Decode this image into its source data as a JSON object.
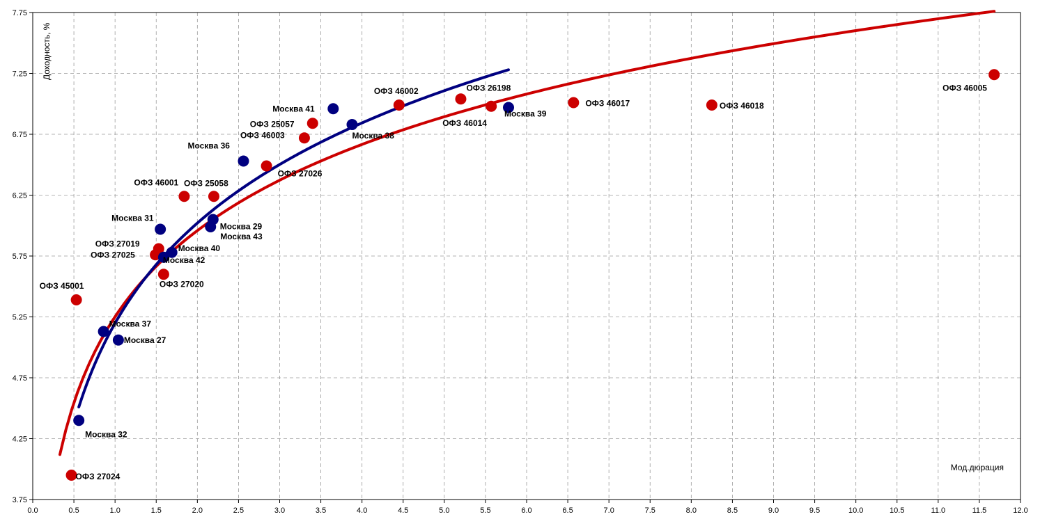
{
  "chart_data": {
    "type": "scatter",
    "title": "",
    "xlabel": "Мод.дюрация",
    "ylabel": "Доходность, %",
    "xlim": [
      0,
      12
    ],
    "ylim": [
      3.75,
      7.75
    ],
    "x_ticks": [
      "0.0",
      "0.5",
      "1.0",
      "1.5",
      "2.0",
      "2.5",
      "3.0",
      "3.5",
      "4.0",
      "4.5",
      "5.0",
      "5.5",
      "6.0",
      "6.5",
      "7.0",
      "7.5",
      "8.0",
      "8.5",
      "9.0",
      "9.5",
      "10.0",
      "10.5",
      "11.0",
      "11.5",
      "12.0"
    ],
    "y_ticks": [
      "3.75",
      "4.25",
      "4.75",
      "5.25",
      "5.75",
      "6.25",
      "6.75",
      "7.25",
      "7.75"
    ],
    "grid": true,
    "legend": "none",
    "series": [
      {
        "color": "#cc0000",
        "points": [
          {
            "label": "ОФЗ 46005",
            "x": 11.68,
            "y": 7.24
          },
          {
            "label": "ОФЗ 46018",
            "x": 8.25,
            "y": 6.99
          },
          {
            "label": "ОФЗ 46017",
            "x": 6.57,
            "y": 7.01
          },
          {
            "label": "ОФЗ 46014",
            "x": 5.57,
            "y": 6.98
          },
          {
            "label": "ОФЗ 26198",
            "x": 5.2,
            "y": 7.04
          },
          {
            "label": "ОФЗ 46002",
            "x": 4.45,
            "y": 6.99
          },
          {
            "label": "ОФЗ 25057",
            "x": 3.4,
            "y": 6.84
          },
          {
            "label": "ОФЗ 46003",
            "x": 3.3,
            "y": 6.72
          },
          {
            "label": "ОФЗ 27026",
            "x": 2.84,
            "y": 6.49
          },
          {
            "label": "ОФЗ 25058",
            "x": 2.2,
            "y": 6.24
          },
          {
            "label": "ОФЗ 46001",
            "x": 1.84,
            "y": 6.24
          },
          {
            "label": "ОФЗ 27019",
            "x": 1.53,
            "y": 5.81
          },
          {
            "label": "ОФЗ 27025",
            "x": 1.49,
            "y": 5.76
          },
          {
            "label": "ОФЗ 27020",
            "x": 1.59,
            "y": 5.6
          },
          {
            "label": "ОФЗ 45001",
            "x": 0.53,
            "y": 5.39
          },
          {
            "label": "ОФЗ 27024",
            "x": 0.47,
            "y": 3.95
          }
        ],
        "trend": {
          "type": "log",
          "x_range": [
            0.33,
            11.68
          ],
          "y_start": 4.12,
          "y_end": 7.76
        }
      },
      {
        "color": "#000080",
        "points": [
          {
            "label": "Москва 39",
            "x": 5.78,
            "y": 6.97
          },
          {
            "label": "Москва 41",
            "x": 3.65,
            "y": 6.96
          },
          {
            "label": "Москва 38",
            "x": 3.88,
            "y": 6.83
          },
          {
            "label": "Москва 36",
            "x": 2.56,
            "y": 6.53
          },
          {
            "label": "Москва 29",
            "x": 2.19,
            "y": 6.05
          },
          {
            "label": "Москва 43",
            "x": 2.16,
            "y": 5.99
          },
          {
            "label": "Москва 31",
            "x": 1.55,
            "y": 5.97
          },
          {
            "label": "Москва 40",
            "x": 1.69,
            "y": 5.78
          },
          {
            "label": "Москва 42",
            "x": 1.59,
            "y": 5.74
          },
          {
            "label": "Москва 37",
            "x": 0.86,
            "y": 5.13
          },
          {
            "label": "Москва 27",
            "x": 1.04,
            "y": 5.06
          },
          {
            "label": "Москва 32",
            "x": 0.56,
            "y": 4.4
          }
        ],
        "trend": {
          "type": "log",
          "x_range": [
            0.56,
            5.78
          ],
          "y_start": 4.51,
          "y_end": 7.28
        }
      }
    ]
  }
}
